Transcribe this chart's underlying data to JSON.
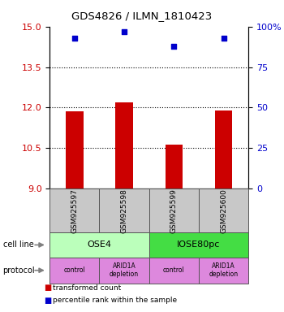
{
  "title": "GDS4826 / ILMN_1810423",
  "samples": [
    "GSM925597",
    "GSM925598",
    "GSM925599",
    "GSM925600"
  ],
  "bar_values": [
    11.85,
    12.18,
    10.63,
    11.9
  ],
  "blue_values": [
    93,
    97,
    88,
    93
  ],
  "ylim_left": [
    9,
    15
  ],
  "ylim_right": [
    0,
    100
  ],
  "yticks_left": [
    9,
    10.5,
    12,
    13.5,
    15
  ],
  "yticks_right": [
    0,
    25,
    50,
    75,
    100
  ],
  "bar_color": "#cc0000",
  "blue_color": "#0000cc",
  "cell_line_labels": [
    "OSE4",
    "IOSE80pc"
  ],
  "cell_line_colors": [
    "#bbffbb",
    "#44dd44"
  ],
  "cell_line_spans": [
    [
      0,
      2
    ],
    [
      2,
      4
    ]
  ],
  "protocol_labels": [
    "control",
    "ARID1A\ndepletion",
    "control",
    "ARID1A\ndepletion"
  ],
  "protocol_color": "#dd88dd",
  "sample_bg_color": "#c8c8c8",
  "legend_items": [
    {
      "color": "#cc0000",
      "label": "transformed count"
    },
    {
      "color": "#0000cc",
      "label": "percentile rank within the sample"
    }
  ],
  "ylabel_left_color": "#cc0000",
  "ylabel_right_color": "#0000cc",
  "bar_width": 0.35
}
